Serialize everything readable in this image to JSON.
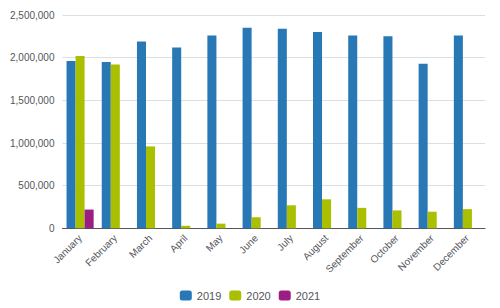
{
  "chart_data": {
    "type": "bar",
    "categories": [
      "January",
      "February",
      "March",
      "April",
      "May",
      "June",
      "July",
      "August",
      "September",
      "October",
      "November",
      "December"
    ],
    "series": [
      {
        "name": "2019",
        "color": "#2878B5",
        "values": [
          1960000,
          1950000,
          2190000,
          2120000,
          2260000,
          2350000,
          2340000,
          2300000,
          2260000,
          2250000,
          1930000,
          2260000
        ]
      },
      {
        "name": "2020",
        "color": "#AABF00",
        "values": [
          2020000,
          1920000,
          960000,
          30000,
          55000,
          130000,
          270000,
          340000,
          240000,
          210000,
          195000,
          225000
        ]
      },
      {
        "name": "2021",
        "color": "#9B1F82",
        "values": [
          220000,
          0,
          0,
          0,
          0,
          0,
          0,
          0,
          0,
          0,
          0,
          0
        ]
      }
    ],
    "ylim": [
      0,
      2500000
    ],
    "yticks": [
      0,
      {
        "value": 500000,
        "label": "500,000"
      },
      {
        "value": 1000000,
        "label": "1,000,000"
      },
      {
        "value": 1500000,
        "label": "1,500,000"
      },
      {
        "value": 2000000,
        "label": "2,000,000"
      },
      {
        "value": 2500000,
        "label": "2,500,000"
      }
    ],
    "grid": true,
    "legend": "bottom"
  }
}
